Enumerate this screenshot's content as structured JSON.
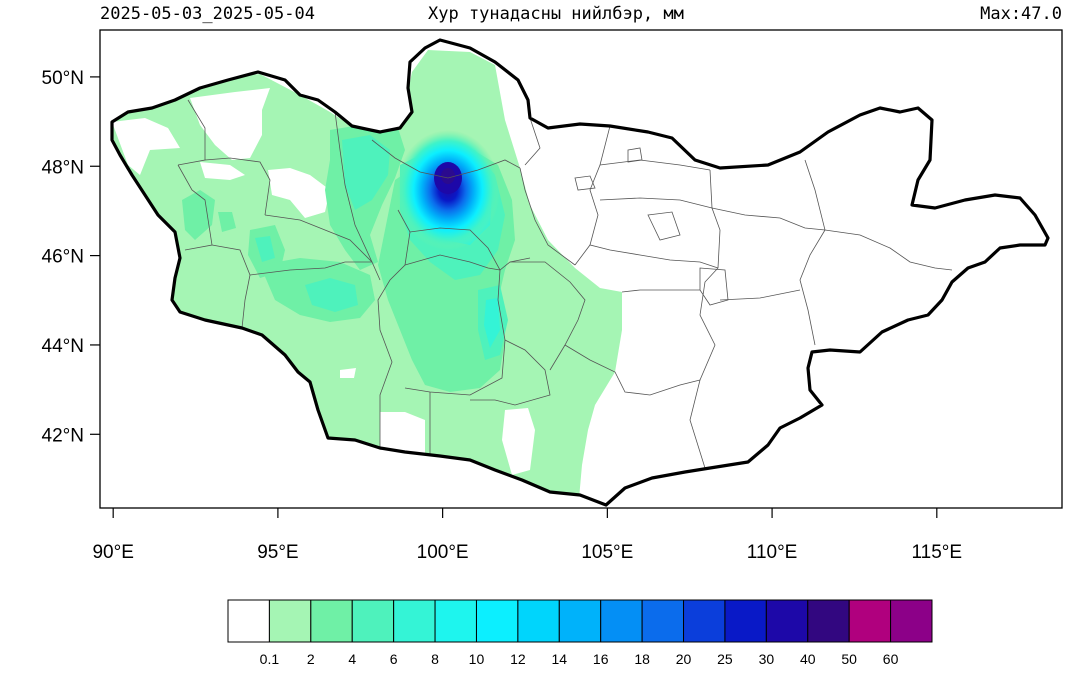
{
  "header": {
    "date_range": "2025-05-03_2025-05-04",
    "title": "Хур тунадасны нийлбэр, мм",
    "max_label": "Max:47.0"
  },
  "map": {
    "region": "Mongolia",
    "lon_range": [
      89.6,
      118.8
    ],
    "lat_range": [
      40.35,
      51.05
    ],
    "lon_ticks": [
      {
        "value": 90,
        "label": "90°E"
      },
      {
        "value": 95,
        "label": "95°E"
      },
      {
        "value": 100,
        "label": "100°E"
      },
      {
        "value": 105,
        "label": "105°E"
      },
      {
        "value": 110,
        "label": "110°E"
      },
      {
        "value": 115,
        "label": "115°E"
      }
    ],
    "lat_ticks": [
      {
        "value": 42,
        "label": "42°N"
      },
      {
        "value": 44,
        "label": "44°N"
      },
      {
        "value": 46,
        "label": "46°N"
      },
      {
        "value": 48,
        "label": "48°N"
      },
      {
        "value": 50,
        "label": "50°N"
      }
    ],
    "precip_max": 47.0,
    "precip_max_location": {
      "lon": 100.2,
      "lat": 47.8
    },
    "colors": {
      "border": "#000000",
      "province_lines": "#555555",
      "light": "#a5f5b4",
      "medium": "#6ff0a6",
      "high": "#3ff3c9",
      "peak": "#1a1ab3"
    }
  },
  "colorbar": {
    "labels": [
      "0.1",
      "2",
      "4",
      "6",
      "8",
      "10",
      "12",
      "14",
      "16",
      "18",
      "20",
      "25",
      "30",
      "40",
      "50",
      "60"
    ],
    "colors": [
      "#ffffff",
      "#a5f5b4",
      "#6ff0a6",
      "#4ef2bc",
      "#34f4d6",
      "#1ef5ee",
      "#0cefff",
      "#00d5fc",
      "#00b2fa",
      "#048ff5",
      "#0b6cec",
      "#0b3edb",
      "#0919c7",
      "#1d08a8",
      "#320780",
      "#b0007e",
      "#8c0088"
    ]
  }
}
